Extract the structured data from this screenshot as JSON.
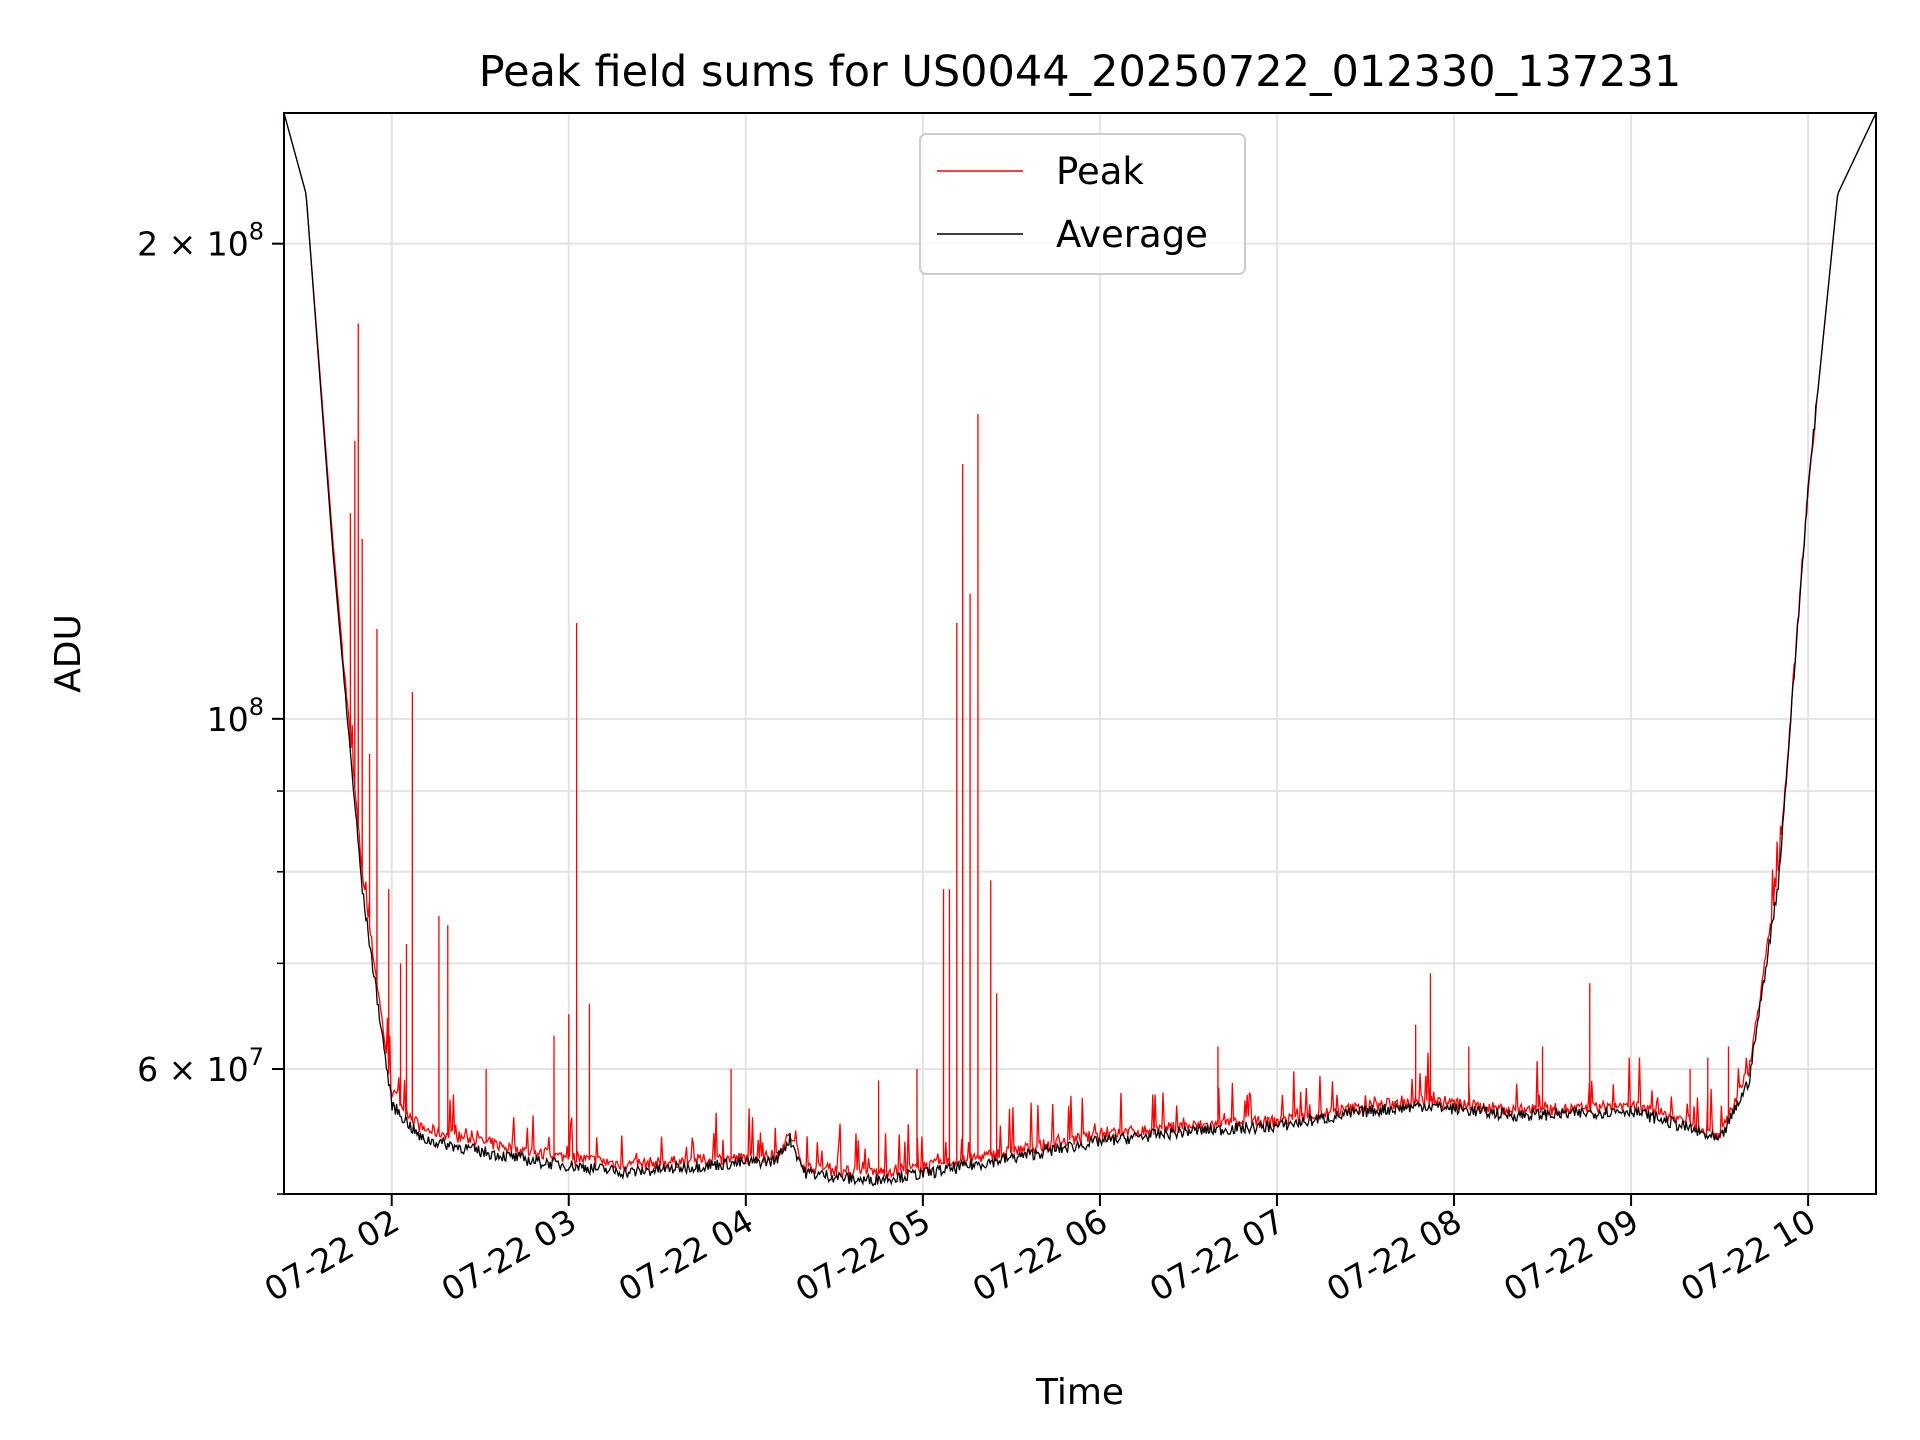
{
  "chart_data": {
    "type": "line",
    "title": "Peak field sums for US0044_20250722_012330_137231",
    "xlabel": "Time",
    "ylabel": "ADU",
    "x_scale": "time",
    "y_scale": "log",
    "xlim": [
      "2025-07-22 01:23:30",
      "2025-07-22 10:23:00"
    ],
    "ylim": [
      50000000,
      242000000
    ],
    "grid": true,
    "legend_position": "upper center",
    "x_ticks": [
      {
        "t": "2025-07-22 02:00",
        "label": "07-22 02"
      },
      {
        "t": "2025-07-22 03:00",
        "label": "07-22 03"
      },
      {
        "t": "2025-07-22 04:00",
        "label": "07-22 04"
      },
      {
        "t": "2025-07-22 05:00",
        "label": "07-22 05"
      },
      {
        "t": "2025-07-22 06:00",
        "label": "07-22 06"
      },
      {
        "t": "2025-07-22 07:00",
        "label": "07-22 07"
      },
      {
        "t": "2025-07-22 08:00",
        "label": "07-22 08"
      },
      {
        "t": "2025-07-22 09:00",
        "label": "07-22 09"
      },
      {
        "t": "2025-07-22 10:00",
        "label": "07-22 10"
      }
    ],
    "y_major_ticks": [
      {
        "value": 60000000,
        "mantissa": "6",
        "exponent": "7"
      },
      {
        "value": 100000000,
        "mantissa": "",
        "exponent": "8"
      },
      {
        "value": 200000000,
        "mantissa": "2",
        "exponent": "8"
      }
    ],
    "y_minor_ticks": [
      50000000,
      70000000,
      80000000,
      90000000
    ],
    "series": [
      {
        "name": "Peak",
        "color": "#ff0000",
        "baseline_points": [
          [
            "2025-07-22 01:23:30",
            242000000
          ],
          [
            "2025-07-22 01:31:00",
            215000000
          ],
          [
            "2025-07-22 01:40:00",
            130000000
          ],
          [
            "2025-07-22 01:50:00",
            80000000
          ],
          [
            "2025-07-22 02:00:00",
            58000000
          ],
          [
            "2025-07-22 02:10:00",
            55000000
          ],
          [
            "2025-07-22 02:30:00",
            54000000
          ],
          [
            "2025-07-22 02:50:00",
            53000000
          ],
          [
            "2025-07-22 03:20:00",
            52200000
          ],
          [
            "2025-07-22 03:50:00",
            52600000
          ],
          [
            "2025-07-22 04:10:00",
            52800000
          ],
          [
            "2025-07-22 04:15:00",
            54500000
          ],
          [
            "2025-07-22 04:20:00",
            52000000
          ],
          [
            "2025-07-22 04:40:00",
            51500000
          ],
          [
            "2025-07-22 05:00:00",
            52000000
          ],
          [
            "2025-07-22 05:30:00",
            53200000
          ],
          [
            "2025-07-22 06:00:00",
            54500000
          ],
          [
            "2025-07-22 06:30:00",
            55200000
          ],
          [
            "2025-07-22 07:00:00",
            55600000
          ],
          [
            "2025-07-22 07:30:00",
            56800000
          ],
          [
            "2025-07-22 07:50:00",
            57300000
          ],
          [
            "2025-07-22 08:20:00",
            56500000
          ],
          [
            "2025-07-22 08:40:00",
            56600000
          ],
          [
            "2025-07-22 09:00:00",
            56900000
          ],
          [
            "2025-07-22 09:20:00",
            55500000
          ],
          [
            "2025-07-22 09:30:00",
            54500000
          ],
          [
            "2025-07-22 09:40:00",
            60000000
          ],
          [
            "2025-07-22 09:50:00",
            80000000
          ],
          [
            "2025-07-22 10:00:00",
            140000000
          ],
          [
            "2025-07-22 10:10:00",
            215000000
          ],
          [
            "2025-07-22 10:23:00",
            242000000
          ]
        ],
        "spikes": [
          [
            "2025-07-22 01:46:00",
            135000000
          ],
          [
            "2025-07-22 01:47:30",
            150000000
          ],
          [
            "2025-07-22 01:48:40",
            178000000
          ],
          [
            "2025-07-22 01:50:00",
            130000000
          ],
          [
            "2025-07-22 01:52:30",
            95000000
          ],
          [
            "2025-07-22 01:55:00",
            114000000
          ],
          [
            "2025-07-22 01:59:00",
            78000000
          ],
          [
            "2025-07-22 02:03:00",
            70000000
          ],
          [
            "2025-07-22 02:05:00",
            72000000
          ],
          [
            "2025-07-22 02:07:00",
            104000000
          ],
          [
            "2025-07-22 02:16:00",
            75000000
          ],
          [
            "2025-07-22 02:19:00",
            74000000
          ],
          [
            "2025-07-22 02:32:00",
            60000000
          ],
          [
            "2025-07-22 02:55:00",
            63000000
          ],
          [
            "2025-07-22 03:00:00",
            65000000
          ],
          [
            "2025-07-22 03:02:40",
            115000000
          ],
          [
            "2025-07-22 03:07:00",
            66000000
          ],
          [
            "2025-07-22 03:55:00",
            60000000
          ],
          [
            "2025-07-22 04:45:00",
            59000000
          ],
          [
            "2025-07-22 04:58:00",
            60000000
          ],
          [
            "2025-07-22 05:07:00",
            78000000
          ],
          [
            "2025-07-22 05:09:00",
            78000000
          ],
          [
            "2025-07-22 05:11:30",
            115000000
          ],
          [
            "2025-07-22 05:13:30",
            145000000
          ],
          [
            "2025-07-22 05:16:00",
            120000000
          ],
          [
            "2025-07-22 05:18:40",
            156000000
          ],
          [
            "2025-07-22 05:23:00",
            79000000
          ],
          [
            "2025-07-22 05:25:00",
            67000000
          ],
          [
            "2025-07-22 06:40:00",
            62000000
          ],
          [
            "2025-07-22 07:47:00",
            64000000
          ],
          [
            "2025-07-22 07:52:00",
            69000000
          ],
          [
            "2025-07-22 08:05:00",
            62000000
          ],
          [
            "2025-07-22 08:30:00",
            62000000
          ],
          [
            "2025-07-22 08:46:00",
            68000000
          ],
          [
            "2025-07-22 09:20:00",
            60000000
          ],
          [
            "2025-07-22 09:26:00",
            61000000
          ],
          [
            "2025-07-22 09:33:00",
            62000000
          ]
        ]
      },
      {
        "name": "Average",
        "color": "#000000",
        "baseline_points": [
          [
            "2025-07-22 01:23:30",
            242000000
          ],
          [
            "2025-07-22 01:31:00",
            215000000
          ],
          [
            "2025-07-22 01:40:00",
            128000000
          ],
          [
            "2025-07-22 01:50:00",
            78000000
          ],
          [
            "2025-07-22 02:00:00",
            57000000
          ],
          [
            "2025-07-22 02:10:00",
            54200000
          ],
          [
            "2025-07-22 02:30:00",
            53200000
          ],
          [
            "2025-07-22 02:50:00",
            52400000
          ],
          [
            "2025-07-22 03:20:00",
            51600000
          ],
          [
            "2025-07-22 03:50:00",
            52200000
          ],
          [
            "2025-07-22 04:10:00",
            52500000
          ],
          [
            "2025-07-22 04:15:00",
            54200000
          ],
          [
            "2025-07-22 04:20:00",
            51600000
          ],
          [
            "2025-07-22 04:40:00",
            51000000
          ],
          [
            "2025-07-22 05:00:00",
            51500000
          ],
          [
            "2025-07-22 05:30:00",
            52700000
          ],
          [
            "2025-07-22 06:00:00",
            54000000
          ],
          [
            "2025-07-22 06:30:00",
            54800000
          ],
          [
            "2025-07-22 07:00:00",
            55200000
          ],
          [
            "2025-07-22 07:30:00",
            56400000
          ],
          [
            "2025-07-22 07:50:00",
            56900000
          ],
          [
            "2025-07-22 08:20:00",
            56100000
          ],
          [
            "2025-07-22 08:40:00",
            56200000
          ],
          [
            "2025-07-22 09:00:00",
            56500000
          ],
          [
            "2025-07-22 09:20:00",
            55000000
          ],
          [
            "2025-07-22 09:30:00",
            54000000
          ],
          [
            "2025-07-22 09:40:00",
            59000000
          ],
          [
            "2025-07-22 09:50:00",
            79000000
          ],
          [
            "2025-07-22 10:00:00",
            140000000
          ],
          [
            "2025-07-22 10:10:00",
            215000000
          ],
          [
            "2025-07-22 10:23:00",
            242000000
          ]
        ]
      }
    ]
  }
}
